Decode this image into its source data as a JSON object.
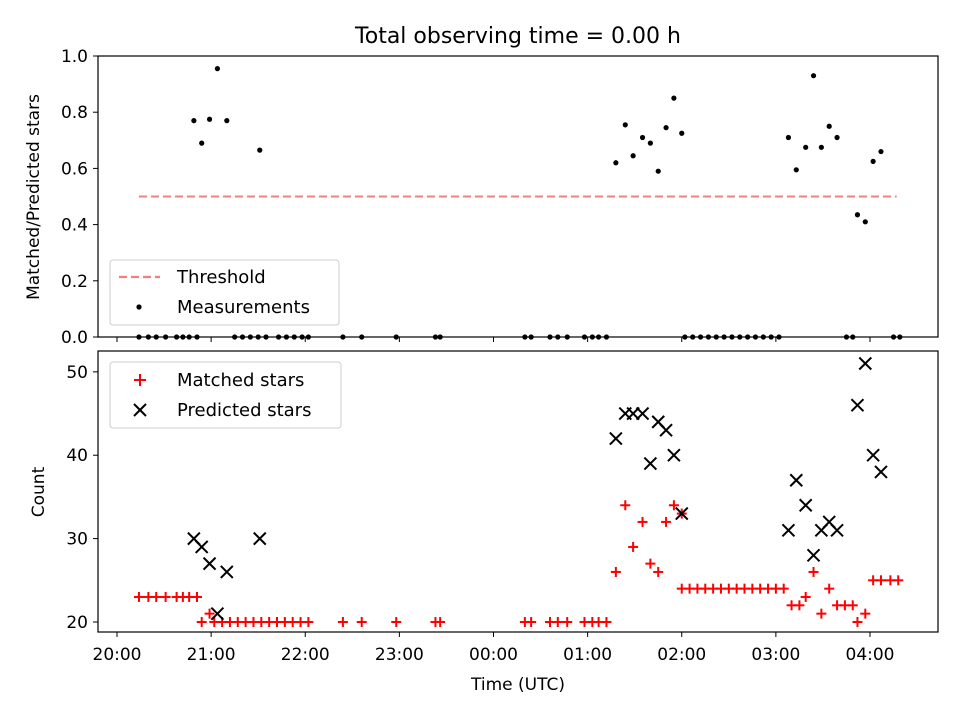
{
  "figure": {
    "title": "Total observing time = 0.00 h",
    "xlabel": "Time (UTC)"
  },
  "chart_data": [
    {
      "type": "scatter",
      "panel": "top",
      "ylabel": "Matched/Predicted stars",
      "ylim": [
        0.0,
        1.0
      ],
      "yticks": [
        "0.0",
        "0.2",
        "0.4",
        "0.6",
        "0.8",
        "1.0"
      ],
      "x_time_range": [
        "20:00",
        "04:00"
      ],
      "legend": {
        "position": "lower-left",
        "entries": [
          "Threshold",
          "Measurements"
        ]
      },
      "threshold": {
        "name": "Threshold",
        "value": 0.5,
        "x": [
          "20:14",
          "04:17"
        ],
        "color": "#f08080"
      },
      "series": [
        {
          "name": "Measurements",
          "color": "#000000",
          "points": [
            [
              "20:14",
              0.0
            ],
            [
              "20:20",
              0.0
            ],
            [
              "20:25",
              0.0
            ],
            [
              "20:31",
              0.0
            ],
            [
              "20:38",
              0.0
            ],
            [
              "20:42",
              0.0
            ],
            [
              "20:46",
              0.0
            ],
            [
              "20:51",
              0.0
            ],
            [
              "20:49",
              0.77
            ],
            [
              "20:54",
              0.69
            ],
            [
              "20:59",
              0.775
            ],
            [
              "21:04",
              0.955
            ],
            [
              "21:10",
              0.77
            ],
            [
              "21:15",
              0.0
            ],
            [
              "21:20",
              0.0
            ],
            [
              "21:25",
              0.0
            ],
            [
              "21:30",
              0.0
            ],
            [
              "21:35",
              0.0
            ],
            [
              "21:43",
              0.0
            ],
            [
              "21:48",
              0.0
            ],
            [
              "21:53",
              0.0
            ],
            [
              "21:58",
              0.0
            ],
            [
              "22:02",
              0.0
            ],
            [
              "21:31",
              0.665
            ],
            [
              "22:24",
              0.0
            ],
            [
              "22:36",
              0.0
            ],
            [
              "22:58",
              0.0
            ],
            [
              "23:23",
              0.0
            ],
            [
              "23:26",
              0.0
            ],
            [
              "00:20",
              0.0
            ],
            [
              "00:24",
              0.0
            ],
            [
              "00:36",
              0.0
            ],
            [
              "00:41",
              0.0
            ],
            [
              "00:47",
              0.0
            ],
            [
              "00:58",
              0.0
            ],
            [
              "01:03",
              0.0
            ],
            [
              "01:07",
              0.0
            ],
            [
              "01:12",
              0.0
            ],
            [
              "01:18",
              0.62
            ],
            [
              "01:24",
              0.755
            ],
            [
              "01:29",
              0.645
            ],
            [
              "01:35",
              0.71
            ],
            [
              "01:40",
              0.69
            ],
            [
              "01:45",
              0.59
            ],
            [
              "01:50",
              0.745
            ],
            [
              "01:55",
              0.85
            ],
            [
              "02:00",
              0.725
            ],
            [
              "02:02",
              0.0
            ],
            [
              "02:07",
              0.0
            ],
            [
              "02:12",
              0.0
            ],
            [
              "02:17",
              0.0
            ],
            [
              "02:22",
              0.0
            ],
            [
              "02:27",
              0.0
            ],
            [
              "02:32",
              0.0
            ],
            [
              "02:37",
              0.0
            ],
            [
              "02:42",
              0.0
            ],
            [
              "02:47",
              0.0
            ],
            [
              "02:52",
              0.0
            ],
            [
              "02:57",
              0.0
            ],
            [
              "03:02",
              0.0
            ],
            [
              "03:08",
              0.71
            ],
            [
              "03:13",
              0.595
            ],
            [
              "03:19",
              0.675
            ],
            [
              "03:24",
              0.93
            ],
            [
              "03:29",
              0.675
            ],
            [
              "03:34",
              0.75
            ],
            [
              "03:39",
              0.71
            ],
            [
              "03:45",
              0.0
            ],
            [
              "03:49",
              0.0
            ],
            [
              "03:52",
              0.435
            ],
            [
              "03:57",
              0.41
            ],
            [
              "04:02",
              0.625
            ],
            [
              "04:07",
              0.66
            ],
            [
              "04:15",
              0.0
            ],
            [
              "04:19",
              0.0
            ]
          ]
        }
      ]
    },
    {
      "type": "scatter",
      "panel": "bottom",
      "ylabel": "Count",
      "ylim": [
        18.8,
        52.5
      ],
      "yticks": [
        "20",
        "30",
        "40",
        "50"
      ],
      "xticks": [
        "20:00",
        "21:00",
        "22:00",
        "23:00",
        "00:00",
        "01:00",
        "02:00",
        "03:00",
        "04:00"
      ],
      "legend": {
        "position": "upper-left",
        "entries": [
          "Matched stars",
          "Predicted stars"
        ]
      },
      "series": [
        {
          "name": "Matched stars",
          "marker": "plus",
          "color": "#ff0000",
          "points": [
            [
              "20:14",
              23
            ],
            [
              "20:20",
              23
            ],
            [
              "20:25",
              23
            ],
            [
              "20:31",
              23
            ],
            [
              "20:38",
              23
            ],
            [
              "20:42",
              23
            ],
            [
              "20:46",
              23
            ],
            [
              "20:51",
              23
            ],
            [
              "20:54",
              20
            ],
            [
              "20:59",
              21
            ],
            [
              "21:02",
              20
            ],
            [
              "21:07",
              20
            ],
            [
              "21:12",
              20
            ],
            [
              "21:17",
              20
            ],
            [
              "21:22",
              20
            ],
            [
              "21:27",
              20
            ],
            [
              "21:32",
              20
            ],
            [
              "21:37",
              20
            ],
            [
              "21:42",
              20
            ],
            [
              "21:47",
              20
            ],
            [
              "21:52",
              20
            ],
            [
              "21:57",
              20
            ],
            [
              "22:02",
              20
            ],
            [
              "22:24",
              20
            ],
            [
              "22:36",
              20
            ],
            [
              "22:58",
              20
            ],
            [
              "23:23",
              20
            ],
            [
              "23:26",
              20
            ],
            [
              "00:20",
              20
            ],
            [
              "00:24",
              20
            ],
            [
              "00:36",
              20
            ],
            [
              "00:41",
              20
            ],
            [
              "00:47",
              20
            ],
            [
              "00:58",
              20
            ],
            [
              "01:03",
              20
            ],
            [
              "01:07",
              20
            ],
            [
              "01:12",
              20
            ],
            [
              "01:18",
              26
            ],
            [
              "01:24",
              34
            ],
            [
              "01:29",
              29
            ],
            [
              "01:35",
              32
            ],
            [
              "01:40",
              27
            ],
            [
              "01:45",
              26
            ],
            [
              "01:50",
              32
            ],
            [
              "01:55",
              34
            ],
            [
              "02:00",
              33
            ],
            [
              "02:00",
              24
            ],
            [
              "02:05",
              24
            ],
            [
              "02:10",
              24
            ],
            [
              "02:15",
              24
            ],
            [
              "02:20",
              24
            ],
            [
              "02:25",
              24
            ],
            [
              "02:30",
              24
            ],
            [
              "02:35",
              24
            ],
            [
              "02:40",
              24
            ],
            [
              "02:45",
              24
            ],
            [
              "02:50",
              24
            ],
            [
              "02:55",
              24
            ],
            [
              "03:00",
              24
            ],
            [
              "03:05",
              24
            ],
            [
              "03:10",
              22
            ],
            [
              "03:15",
              22
            ],
            [
              "03:19",
              23
            ],
            [
              "03:24",
              26
            ],
            [
              "03:29",
              21
            ],
            [
              "03:34",
              24
            ],
            [
              "03:39",
              22
            ],
            [
              "03:44",
              22
            ],
            [
              "03:49",
              22
            ],
            [
              "03:52",
              20
            ],
            [
              "03:57",
              21
            ],
            [
              "04:02",
              25
            ],
            [
              "04:07",
              25
            ],
            [
              "04:13",
              25
            ],
            [
              "04:18",
              25
            ]
          ]
        },
        {
          "name": "Predicted stars",
          "marker": "x",
          "color": "#000000",
          "points": [
            [
              "20:49",
              30
            ],
            [
              "20:54",
              29
            ],
            [
              "20:59",
              27
            ],
            [
              "21:04",
              21
            ],
            [
              "21:10",
              26
            ],
            [
              "21:31",
              30
            ],
            [
              "01:18",
              42
            ],
            [
              "01:24",
              45
            ],
            [
              "01:29",
              45
            ],
            [
              "01:35",
              45
            ],
            [
              "01:40",
              39
            ],
            [
              "01:45",
              44
            ],
            [
              "01:50",
              43
            ],
            [
              "01:55",
              40
            ],
            [
              "02:00",
              33
            ],
            [
              "03:08",
              31
            ],
            [
              "03:13",
              37
            ],
            [
              "03:19",
              34
            ],
            [
              "03:24",
              28
            ],
            [
              "03:29",
              31
            ],
            [
              "03:34",
              32
            ],
            [
              "03:39",
              31
            ],
            [
              "03:52",
              46
            ],
            [
              "03:57",
              51
            ],
            [
              "04:02",
              40
            ],
            [
              "04:07",
              38
            ]
          ]
        }
      ]
    }
  ]
}
